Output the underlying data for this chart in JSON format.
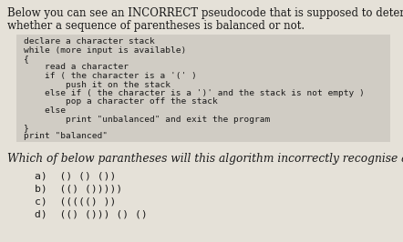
{
  "bg_color": "#e5e1d8",
  "title_line1": "Below you can see an INCORRECT pseudocode that is supposed to determine",
  "title_line2": "whether a sequence of parentheses is balanced or not.",
  "code_lines": [
    "declare a character stack",
    "while (more input is available)",
    "{",
    "    read a character",
    "    if ( the character is a '(' )",
    "        push it on the stack",
    "    else if ( the character is a ')' and the stack is not empty )",
    "        pop a character off the stack",
    "    else",
    "        print \"unbalanced\" and exit the program",
    "}",
    "print \"balanced\""
  ],
  "question_text": "Which of below parantheses will this algorithm incorrectly recognise as balanced?",
  "options": [
    "a)  () () ())",
    "b)  (() ()))))",
    "c)  ((((() ))",
    "d)  (() ())) () ()"
  ],
  "title_fontsize": 8.5,
  "code_fontsize": 6.8,
  "question_fontsize": 8.8,
  "option_fontsize": 8.2,
  "text_color": "#1a1a1a",
  "code_color": "#1a1a1a",
  "code_bg": "#d0ccc4"
}
